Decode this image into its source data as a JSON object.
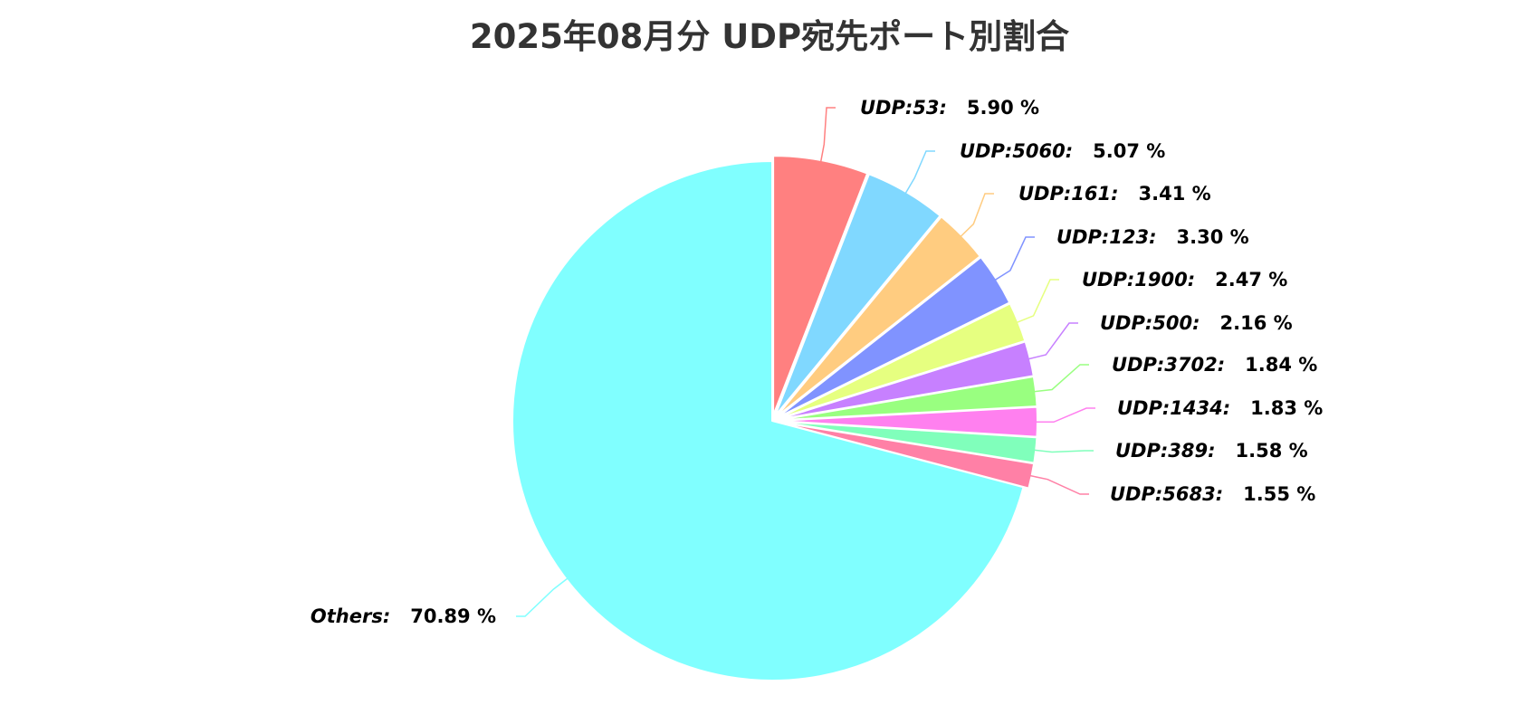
{
  "chart_data": {
    "type": "pie",
    "title": "2025年08月分 UDP宛先ポート別割合",
    "unit": "%",
    "slices": [
      {
        "label": "UDP:53",
        "value": 5.9,
        "value_text": "5.90 %",
        "color": "#ff8080"
      },
      {
        "label": "UDP:5060",
        "value": 5.07,
        "value_text": "5.07 %",
        "color": "#80d8ff"
      },
      {
        "label": "UDP:161",
        "value": 3.41,
        "value_text": "3.41 %",
        "color": "#ffcc80"
      },
      {
        "label": "UDP:123",
        "value": 3.3,
        "value_text": "3.30 %",
        "color": "#8093ff"
      },
      {
        "label": "UDP:1900",
        "value": 2.47,
        "value_text": "2.47 %",
        "color": "#e6ff80"
      },
      {
        "label": "UDP:500",
        "value": 2.16,
        "value_text": "2.16 %",
        "color": "#c780ff"
      },
      {
        "label": "UDP:3702",
        "value": 1.84,
        "value_text": "1.84 %",
        "color": "#99ff80"
      },
      {
        "label": "UDP:1434",
        "value": 1.83,
        "value_text": "1.83 %",
        "color": "#ff80ef"
      },
      {
        "label": "UDP:389",
        "value": 1.58,
        "value_text": "1.58 %",
        "color": "#80ffbb"
      },
      {
        "label": "UDP:5683",
        "value": 1.55,
        "value_text": "1.55 %",
        "color": "#ff80a6"
      },
      {
        "label": "Others",
        "value": 70.89,
        "value_text": "70.89 %",
        "color": "#80ffff"
      }
    ],
    "start_angle": "12 o'clock",
    "direction": "clockwise",
    "legend": "none",
    "labels": "outside with leader lines"
  }
}
